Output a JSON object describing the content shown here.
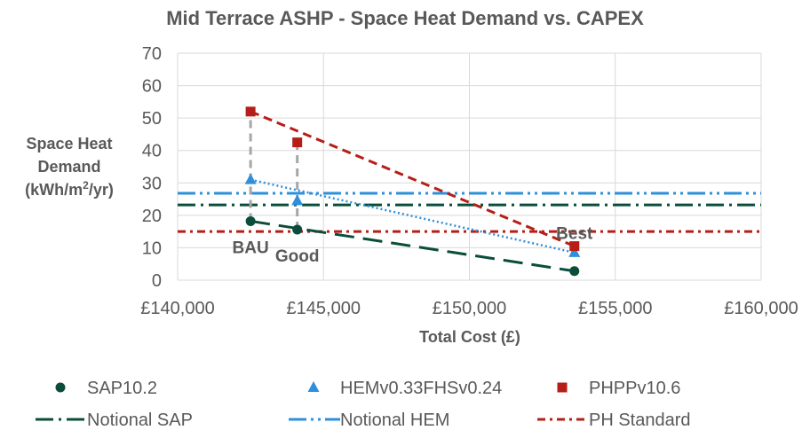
{
  "chart_data": {
    "type": "scatter",
    "title": "Mid Terrace ASHP - Space Heat Demand vs. CAPEX",
    "xlabel": "Total Cost (£)",
    "ylabel_lines": [
      "Space Heat",
      "Demand",
      "(kWh/m2/yr)"
    ],
    "xlim": [
      140000,
      160000
    ],
    "ylim": [
      0,
      70
    ],
    "x_ticks": [
      140000,
      145000,
      150000,
      155000,
      160000
    ],
    "x_tick_labels": [
      "£140,000",
      "£145,000",
      "£150,000",
      "£155,000",
      "£160,000"
    ],
    "y_ticks": [
      0,
      10,
      20,
      30,
      40,
      50,
      60,
      70
    ],
    "y_tick_labels": [
      "0",
      "10",
      "20",
      "30",
      "40",
      "50",
      "60",
      "70"
    ],
    "grid": true,
    "legend_position": "bottom",
    "series": [
      {
        "name": "SAP10.2",
        "marker": "circle",
        "color": "#0b4d3b",
        "x": [
          142500,
          144100,
          153600
        ],
        "y": [
          18.2,
          15.6,
          2.8
        ]
      },
      {
        "name": "HEMv0.33FHSv0.24",
        "marker": "triangle",
        "color": "#2e8fdc",
        "x": [
          142500,
          144100,
          153600
        ],
        "y": [
          31.0,
          24.5,
          8.5
        ]
      },
      {
        "name": "PHPPv10.6",
        "marker": "square",
        "color": "#b51f17",
        "x": [
          142500,
          144100,
          153600
        ],
        "y": [
          52.0,
          42.5,
          10.5
        ]
      }
    ],
    "trendlines": [
      {
        "series": "SAP10.2",
        "color": "#0b4d3b",
        "style": "long-dash",
        "x": [
          142500,
          153600
        ],
        "y": [
          18.2,
          2.8
        ]
      },
      {
        "series": "HEMv0.33FHSv0.24",
        "color": "#2e8fdc",
        "style": "dotted",
        "x": [
          142500,
          153600
        ],
        "y": [
          31.0,
          8.5
        ]
      },
      {
        "series": "PHPPv10.6",
        "color": "#b51f17",
        "style": "dash",
        "x": [
          142500,
          153600
        ],
        "y": [
          52.0,
          10.5
        ]
      }
    ],
    "drop_lines": [
      {
        "x": 142500,
        "y_from": 18.2,
        "y_to": 52.0
      },
      {
        "x": 144100,
        "y_from": 15.6,
        "y_to": 42.5
      }
    ],
    "reference_lines": [
      {
        "name": "Notional SAP",
        "y": 23.2,
        "color": "#0b4d3b",
        "style": "long-dash-dot"
      },
      {
        "name": "Notional HEM",
        "y": 26.8,
        "color": "#2e8fdc",
        "style": "long-dash-dot-dot"
      },
      {
        "name": "PH Standard",
        "y": 15.0,
        "color": "#b51f17",
        "style": "dash-dot"
      }
    ],
    "annotations": [
      {
        "text": "BAU",
        "x": 142500,
        "y": 18.2
      },
      {
        "text": "Good",
        "x": 144100,
        "y": 15.6
      },
      {
        "text": "Best",
        "x": 153600,
        "y": 10.5
      }
    ],
    "legend": [
      {
        "label": "SAP10.2",
        "kind": "marker",
        "marker": "circle",
        "color": "#0b4d3b"
      },
      {
        "label": "HEMv0.33FHSv0.24",
        "kind": "marker",
        "marker": "triangle",
        "color": "#2e8fdc"
      },
      {
        "label": "PHPPv10.6",
        "kind": "marker",
        "marker": "square",
        "color": "#b51f17"
      },
      {
        "label": "Notional SAP",
        "kind": "line",
        "style": "long-dash-dot",
        "color": "#0b4d3b"
      },
      {
        "label": "Notional HEM",
        "kind": "line",
        "style": "long-dash-dot-dot",
        "color": "#2e8fdc"
      },
      {
        "label": "PH Standard",
        "kind": "line",
        "style": "dash-dot",
        "color": "#b51f17"
      }
    ]
  }
}
